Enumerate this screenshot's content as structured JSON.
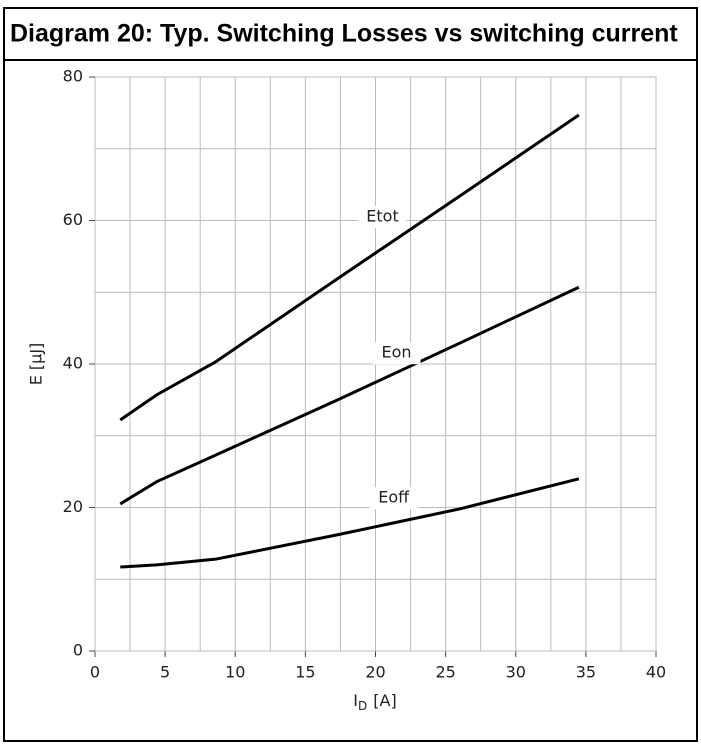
{
  "chart_data": {
    "type": "line",
    "title": "Diagram 20: Typ. Switching Losses vs switching current",
    "xlabel": {
      "main": "I",
      "subscript": "D",
      "unit": "[A]"
    },
    "ylabel": "E [µJ]",
    "x": [
      1.8,
      4.4,
      8.6,
      17.3,
      26,
      34.5
    ],
    "series": [
      {
        "name": "Etot",
        "color": "#000000",
        "values": [
          32.2,
          35.7,
          40.3,
          51.9,
          63.4,
          74.7
        ]
      },
      {
        "name": "Eon",
        "color": "#000000",
        "values": [
          20.5,
          23.6,
          27.3,
          35.0,
          42.9,
          50.7
        ]
      },
      {
        "name": "Eoff",
        "color": "#000000",
        "values": [
          11.7,
          12.0,
          12.8,
          16.2,
          19.8,
          24.0
        ]
      }
    ],
    "xlim": [
      0,
      40
    ],
    "xticks": [
      0,
      5,
      10,
      15,
      20,
      25,
      30,
      35,
      40
    ],
    "x_minor_grid": [
      2.5,
      7.5,
      12.5,
      17.5,
      22.5,
      27.5,
      32.5,
      37.5
    ],
    "ylim": [
      0,
      80
    ],
    "yticks": [
      0,
      20,
      40,
      60,
      80
    ],
    "y_minor_grid": [
      10,
      30,
      50,
      70
    ],
    "grid": true
  }
}
